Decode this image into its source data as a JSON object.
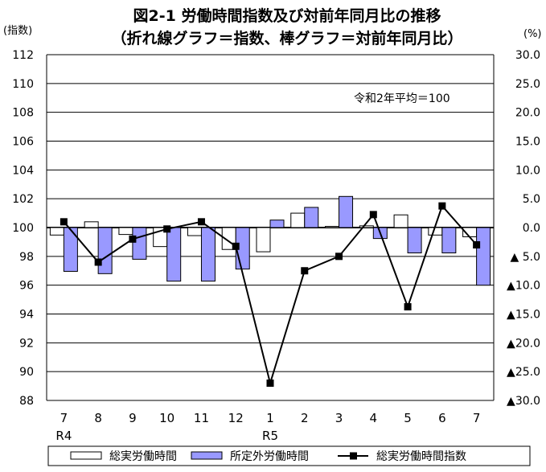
{
  "chart_data": {
    "type": "bar",
    "title": "図2-1 労働時間指数及び対前年同月比の推移",
    "subtitle": "（折れ線グラフ＝指数、棒グラフ＝対前年同月比）",
    "ylabel_left": "(指数)",
    "ylabel_right": "(%)",
    "annotation": "令和2年平均＝100",
    "categories": [
      "7",
      "8",
      "9",
      "10",
      "11",
      "12",
      "1",
      "2",
      "3",
      "4",
      "5",
      "6",
      "7"
    ],
    "year_labels": [
      {
        "index": 0,
        "label": "R4"
      },
      {
        "index": 6,
        "label": "R5"
      }
    ],
    "ylim_left": [
      88,
      112
    ],
    "yticks_left": [
      "112",
      "110",
      "108",
      "106",
      "104",
      "102",
      "100",
      "98",
      "96",
      "94",
      "92",
      "90",
      "88"
    ],
    "ylim_right": [
      -30,
      30
    ],
    "yticks_right": [
      "30.0",
      "25.0",
      "20.0",
      "15.0",
      "10.0",
      "5.0",
      "0.0",
      "▲ 5.0",
      "▲10.0",
      "▲15.0",
      "▲20.0",
      "▲25.0",
      "▲30.0"
    ],
    "grid": true,
    "legend_position": "bottom",
    "series": [
      {
        "name": "総実労働時間",
        "kind": "bar",
        "axis": "right",
        "color": "#ffffff",
        "values": [
          -1.3,
          1.0,
          -1.2,
          -3.3,
          -1.4,
          -3.8,
          -4.2,
          2.5,
          0.2,
          0.3,
          2.2,
          -1.3,
          -1.6
        ]
      },
      {
        "name": "所定外労働時間",
        "kind": "bar",
        "axis": "right",
        "color": "#9999ff",
        "values": [
          -7.6,
          -8.0,
          -5.5,
          -9.3,
          -9.3,
          -7.2,
          1.3,
          3.5,
          5.4,
          -1.9,
          -4.4,
          -4.4,
          -10.0
        ]
      },
      {
        "name": "総実労働時間指数",
        "kind": "line",
        "axis": "left",
        "color": "#000000",
        "values": [
          100.4,
          97.6,
          99.2,
          99.9,
          100.4,
          98.7,
          89.2,
          97.0,
          98.0,
          100.9,
          94.5,
          101.5,
          98.8
        ]
      }
    ]
  }
}
